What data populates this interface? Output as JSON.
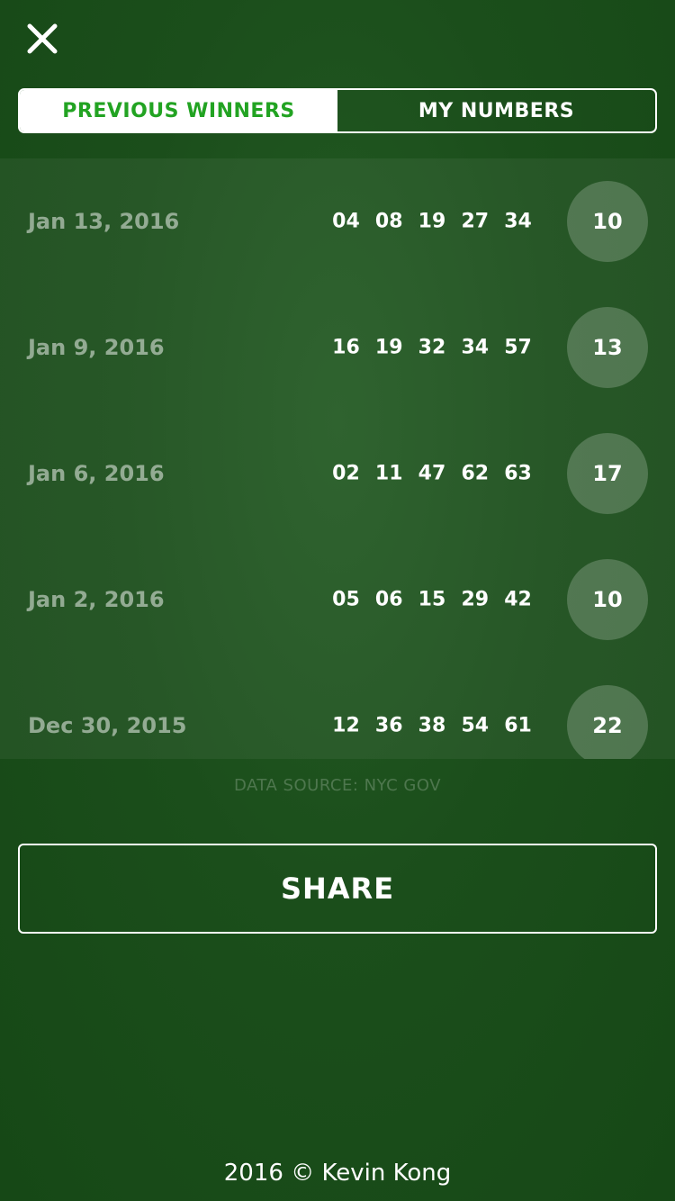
{
  "header": {
    "close_icon": "close-icon"
  },
  "tabs": [
    {
      "label": "PREVIOUS WINNERS",
      "active": true
    },
    {
      "label": "MY NUMBERS",
      "active": false
    }
  ],
  "draws": [
    {
      "date": "Jan 13, 2016",
      "numbers": [
        "04",
        "08",
        "19",
        "27",
        "34"
      ],
      "mega_ball": "10"
    },
    {
      "date": "Jan 9, 2016",
      "numbers": [
        "16",
        "19",
        "32",
        "34",
        "57"
      ],
      "mega_ball": "13"
    },
    {
      "date": "Jan 6, 2016",
      "numbers": [
        "02",
        "11",
        "47",
        "62",
        "63"
      ],
      "mega_ball": "17"
    },
    {
      "date": "Jan 2, 2016",
      "numbers": [
        "05",
        "06",
        "15",
        "29",
        "42"
      ],
      "mega_ball": "10"
    },
    {
      "date": "Dec 30, 2015",
      "numbers": [
        "12",
        "36",
        "38",
        "54",
        "61"
      ],
      "mega_ball": "22"
    }
  ],
  "data_source": "DATA SOURCE: NYC GOV",
  "share_label": "SHARE",
  "footer": "2016 © Kevin Kong",
  "colors": {
    "background": "#1a4d1a",
    "accent": "#22a322",
    "text": "#ffffff"
  }
}
